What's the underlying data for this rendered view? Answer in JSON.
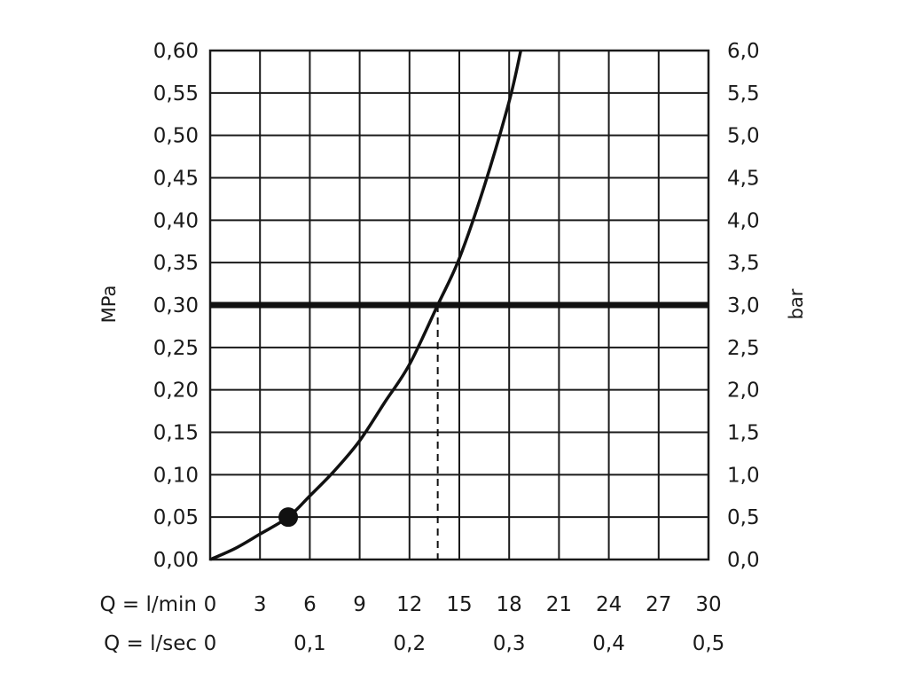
{
  "chart_data": {
    "type": "line",
    "title": "",
    "x_axis_primary": {
      "label": "Q = l/min",
      "ticks": [
        "0",
        "3",
        "6",
        "9",
        "12",
        "15",
        "18",
        "21",
        "24",
        "27",
        "30"
      ],
      "range": [
        0,
        30
      ]
    },
    "x_axis_secondary": {
      "label": "Q = l/sec",
      "ticks": [
        {
          "value": 0,
          "label": "0"
        },
        {
          "value": 0.1,
          "label": "0,1"
        },
        {
          "value": 0.2,
          "label": "0,2"
        },
        {
          "value": 0.3,
          "label": "0,3"
        },
        {
          "value": 0.4,
          "label": "0,4"
        },
        {
          "value": 0.5,
          "label": "0,5"
        }
      ]
    },
    "y_axis_left": {
      "label": "MPa",
      "ticks": [
        "0,00",
        "0,05",
        "0,10",
        "0,15",
        "0,20",
        "0,25",
        "0,30",
        "0,35",
        "0,40",
        "0,45",
        "0,50",
        "0,55",
        "0,60"
      ],
      "range": [
        0,
        0.6
      ]
    },
    "y_axis_right": {
      "label": "bar",
      "ticks": [
        "0,0",
        "0,5",
        "1,0",
        "1,5",
        "2,0",
        "2,5",
        "3,0",
        "3,5",
        "4,0",
        "4,5",
        "5,0",
        "5,5",
        "6,0"
      ],
      "range": [
        0,
        6
      ]
    },
    "grid": true,
    "series": [
      {
        "x": [
          0,
          1.5,
          3,
          4.7,
          6,
          7.5,
          9,
          10.5,
          12,
          13.7,
          15,
          16.5,
          18,
          18.7
        ],
        "y": [
          0.0,
          0.013,
          0.03,
          0.05,
          0.075,
          0.105,
          0.14,
          0.185,
          0.23,
          0.3,
          0.355,
          0.44,
          0.54,
          0.6
        ]
      }
    ],
    "marker": {
      "x": 4.7,
      "y": 0.05
    },
    "reference_line": {
      "y": 0.3
    },
    "drop_line": {
      "x": 13.7,
      "y": 0.3
    }
  }
}
